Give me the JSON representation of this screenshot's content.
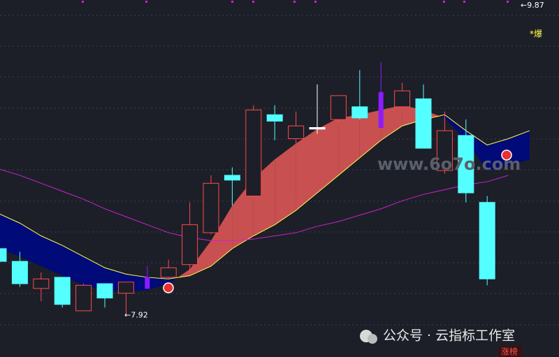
{
  "chart_data": {
    "type": "candlestick",
    "ylim": [
      7.66,
      9.9
    ],
    "candles": {
      "open": [
        8.34,
        8.26,
        8.09,
        8.16,
        7.95,
        8.12,
        8.06,
        8.09,
        8.16,
        8.24,
        8.44,
        8.8,
        8.67,
        9.18,
        9.03,
        9.1,
        9.15,
        9.23,
        9.1,
        9.23,
        9.28,
        8.83,
        9.05,
        8.63,
        null,
        null
      ],
      "high": [
        8.34,
        8.32,
        8.19,
        8.16,
        8.12,
        8.12,
        8.12,
        8.23,
        8.27,
        8.63,
        8.8,
        8.85,
        9.24,
        9.24,
        9.2,
        9.37,
        9.3,
        9.46,
        9.51,
        9.38,
        9.37,
        9.2,
        9.15,
        8.67,
        null,
        null
      ],
      "low": [
        8.26,
        8.1,
        8.01,
        7.97,
        7.95,
        7.97,
        7.92,
        8.09,
        8.15,
        8.19,
        8.43,
        8.61,
        8.66,
        9.02,
        9.0,
        9.06,
        9.13,
        9.15,
        9.1,
        9.22,
        8.97,
        8.81,
        8.63,
        8.11,
        null,
        null
      ],
      "close": [
        8.26,
        8.12,
        8.15,
        7.99,
        8.11,
        8.03,
        8.13,
        8.16,
        8.22,
        8.49,
        8.75,
        8.77,
        9.21,
        9.14,
        9.11,
        9.09,
        9.3,
        9.16,
        9.32,
        9.33,
        8.97,
        9.08,
        8.69,
        8.15,
        null,
        null
      ],
      "colors": [
        "#54ffff",
        "#54ffff",
        "#ff4a4a",
        "#54ffff",
        "#ff4a4a",
        "#54ffff",
        "#ff4a4a",
        "#8a1cff",
        "#ff4a4a",
        "#ff4a4a",
        "#ff4a4a",
        "#54ffff",
        "#ff4a4a",
        "#54ffff",
        "#ff4a4a",
        "#ffffff",
        "#ff4a4a",
        "#54ffff",
        "#8a1cff",
        "#ff4a4a",
        "#54ffff",
        "#ff4a4a",
        "#54ffff",
        "#54ffff",
        null,
        null
      ]
    },
    "ribbon": {
      "fast": [
        8.56,
        8.5,
        8.42,
        8.36,
        8.29,
        8.22,
        8.18,
        8.16,
        8.15,
        8.17,
        8.23,
        8.34,
        8.42,
        8.49,
        8.58,
        8.69,
        8.8,
        8.91,
        9.02,
        9.11,
        9.15,
        9.18,
        9.08,
        8.99,
        9.03,
        9.08
      ],
      "slow": [
        8.34,
        8.29,
        8.23,
        8.17,
        8.11,
        8.08,
        8.07,
        8.08,
        8.12,
        8.21,
        8.39,
        8.61,
        8.78,
        8.9,
        9.0,
        9.09,
        9.16,
        9.18,
        9.21,
        9.24,
        9.21,
        9.16,
        9.02,
        8.83,
        8.86,
        8.9
      ],
      "up_color": "#c85050",
      "down_color": "#000a78",
      "line_color": "#ffff50"
    },
    "ma": {
      "color": "#d020d0",
      "values": [
        8.84,
        8.8,
        8.75,
        8.7,
        8.65,
        8.59,
        8.54,
        8.49,
        8.44,
        8.41,
        8.39,
        8.39,
        8.4,
        8.42,
        8.44,
        8.48,
        8.51,
        8.55,
        8.59,
        8.64,
        8.68,
        8.71,
        8.74,
        8.76,
        8.8,
        null
      ]
    },
    "price_markers": [
      {
        "value": 9.87,
        "label": "←9.87"
      },
      {
        "value": 7.92,
        "label": "←7.92"
      }
    ],
    "annotations": [
      "*爆",
      "涨榜"
    ],
    "watermark": "www.6o7o.com",
    "footer": "公众号 · 云指标工作室"
  }
}
